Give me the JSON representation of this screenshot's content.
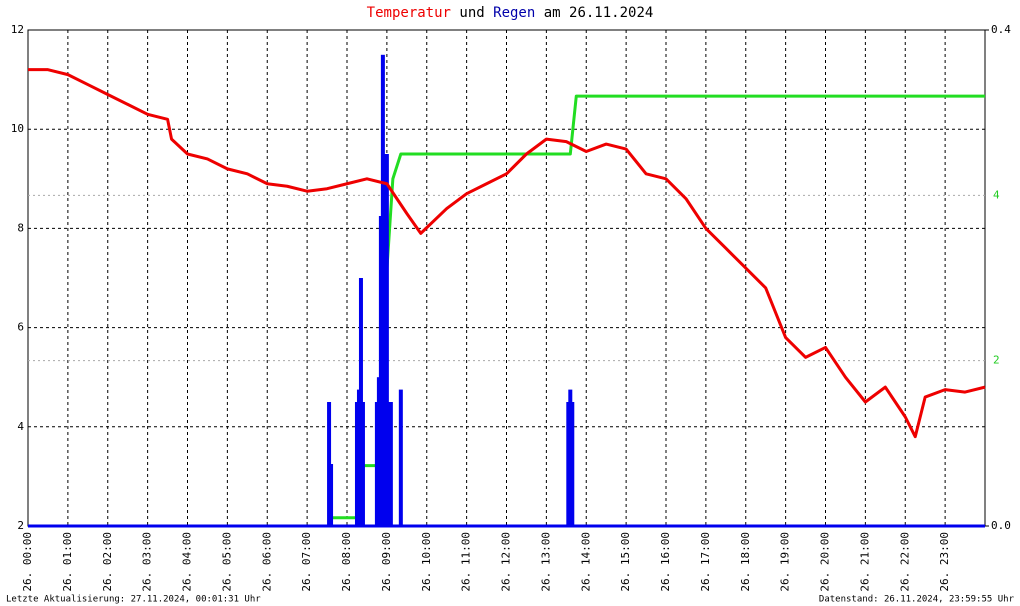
{
  "chart_data": {
    "type": "line",
    "title_joiner": "und",
    "title_date": "am 26.11.2024",
    "footer_left": "Letzte Aktualisierung: 27.11.2024, 00:01:31 Uhr",
    "footer_right": "Datenstand: 26.11.2024, 23:59:55 Uhr",
    "xlim": [
      0,
      24
    ],
    "xticks": [
      {
        "value": 0,
        "label": "26. 00:00"
      },
      {
        "value": 1,
        "label": "26. 01:00"
      },
      {
        "value": 2,
        "label": "26. 02:00"
      },
      {
        "value": 3,
        "label": "26. 03:00"
      },
      {
        "value": 4,
        "label": "26. 04:00"
      },
      {
        "value": 5,
        "label": "26. 05:00"
      },
      {
        "value": 6,
        "label": "26. 06:00"
      },
      {
        "value": 7,
        "label": "26. 07:00"
      },
      {
        "value": 8,
        "label": "26. 08:00"
      },
      {
        "value": 9,
        "label": "26. 09:00"
      },
      {
        "value": 10,
        "label": "26. 10:00"
      },
      {
        "value": 11,
        "label": "26. 11:00"
      },
      {
        "value": 12,
        "label": "26. 12:00"
      },
      {
        "value": 13,
        "label": "26. 13:00"
      },
      {
        "value": 14,
        "label": "26. 14:00"
      },
      {
        "value": 15,
        "label": "26. 15:00"
      },
      {
        "value": 16,
        "label": "26. 16:00"
      },
      {
        "value": 17,
        "label": "26. 17:00"
      },
      {
        "value": 18,
        "label": "26. 18:00"
      },
      {
        "value": 19,
        "label": "26. 19:00"
      },
      {
        "value": 20,
        "label": "26. 20:00"
      },
      {
        "value": 21,
        "label": "26. 21:00"
      },
      {
        "value": 22,
        "label": "26. 22:00"
      },
      {
        "value": 23,
        "label": "26. 23:00"
      }
    ],
    "ylim": [
      2,
      12
    ],
    "yticks": [
      2,
      4,
      6,
      8,
      10,
      12
    ],
    "y2lim": [
      0,
      0.4
    ],
    "y2ticks": [
      {
        "value": 0,
        "label": "0.0"
      },
      {
        "value": 0.4,
        "label": "0.4"
      }
    ],
    "y3lim": [
      0,
      6
    ],
    "y3ticks": [
      2,
      4
    ],
    "grid": true,
    "series": [
      {
        "name": "Temperatur",
        "color": "#ee0000",
        "kind": "line",
        "x": [
          0,
          0.5,
          1,
          1.5,
          2,
          2.5,
          3,
          3.5,
          3.6,
          4,
          4.5,
          5,
          5.5,
          6,
          6.5,
          7,
          7.5,
          8,
          8.5,
          9,
          9.5,
          9.85,
          10.5,
          11,
          11.5,
          12,
          12.5,
          13,
          13.5,
          14,
          14.5,
          15,
          15.5,
          16,
          16.5,
          17,
          17.5,
          18,
          18.5,
          19,
          19.5,
          20,
          20.5,
          21,
          21.5,
          22,
          22.25,
          22.5,
          23,
          23.5,
          24
        ],
        "values": [
          11.2,
          11.2,
          11.1,
          10.9,
          10.7,
          10.5,
          10.3,
          10.2,
          9.8,
          9.5,
          9.4,
          9.2,
          9.1,
          8.9,
          8.85,
          8.75,
          8.8,
          8.9,
          9.0,
          8.9,
          8.3,
          7.9,
          8.4,
          8.7,
          8.9,
          9.1,
          9.5,
          9.8,
          9.75,
          9.55,
          9.7,
          9.6,
          9.1,
          9.0,
          8.6,
          8.0,
          7.6,
          7.2,
          6.8,
          5.8,
          5.4,
          5.6,
          5.0,
          4.5,
          4.8,
          4.2,
          3.8,
          4.6,
          4.75,
          4.7,
          4.8
        ]
      },
      {
        "name": "Regen",
        "color": "#0000ee",
        "kind": "bar",
        "axis": "y2",
        "x": [
          7.55,
          7.6,
          8.25,
          8.3,
          8.35,
          8.4,
          8.75,
          8.8,
          8.85,
          8.9,
          8.95,
          9.0,
          9.05,
          9.1,
          9.35,
          13.55,
          13.6,
          13.65
        ],
        "values": [
          0.1,
          0.05,
          0.1,
          0.11,
          0.2,
          0.1,
          0.1,
          0.12,
          0.25,
          0.38,
          0.3,
          0.3,
          0.1,
          0.1,
          0.11,
          0.1,
          0.11,
          0.1
        ]
      },
      {
        "color": "#22dd22",
        "kind": "line",
        "axis": "y3",
        "x": [
          0,
          7.55,
          7.6,
          8.3,
          8.4,
          8.85,
          9.0,
          9.15,
          9.35,
          13.6,
          13.75,
          24
        ],
        "values": [
          0,
          0,
          0.1,
          0.1,
          0.73,
          0.73,
          3.1,
          4.2,
          4.5,
          4.5,
          5.2,
          5.2
        ]
      }
    ]
  }
}
